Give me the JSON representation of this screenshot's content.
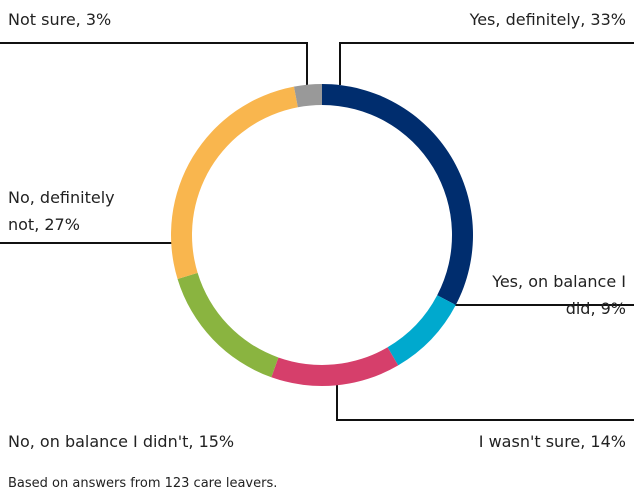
{
  "chart_data": {
    "type": "donut",
    "categories": [
      "Yes, definitely",
      "Yes, on balance I did",
      "I wasn't sure",
      "No, on balance I didn't",
      "No, definitely not",
      "Not sure"
    ],
    "values": [
      33,
      9,
      14,
      15,
      27,
      3
    ],
    "value_labels": [
      "Yes, definitely, 33%",
      "Yes, on balance I did, 9%",
      "I wasn't sure, 14%",
      "No, on balance I didn't, 15%",
      "No, definitely not, 27%",
      "Not sure, 3%"
    ],
    "colors": [
      "#002d6e",
      "#00a9ce",
      "#d63f6b",
      "#8ab440",
      "#f9b64e",
      "#999999"
    ],
    "note": "Based on answers from 123 care leavers."
  }
}
